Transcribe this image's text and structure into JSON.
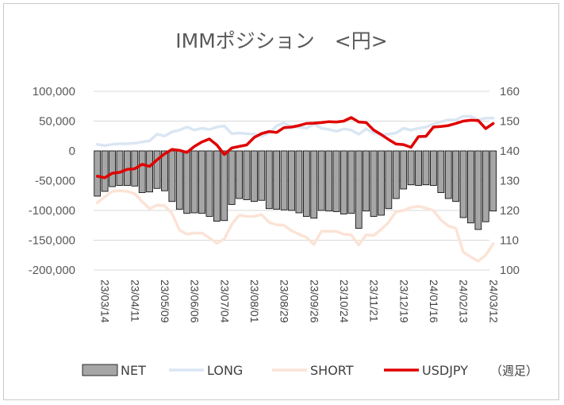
{
  "chart_data": {
    "type": "bar+line",
    "title": "IMMポジション　<円>",
    "note": "（週足）",
    "left_axis": {
      "ylim": [
        -200000,
        100000
      ],
      "ticks": [
        "100,000",
        "50,000",
        "0",
        "-50,000",
        "-100,000",
        "-150,000",
        "-200,000"
      ]
    },
    "right_axis": {
      "ylim": [
        100,
        160
      ],
      "ticks": [
        "160",
        "150",
        "140",
        "130",
        "120",
        "110",
        "100"
      ]
    },
    "x_tick_labels": [
      "23/03/14",
      "23/04/11",
      "23/05/09",
      "23/06/06",
      "23/07/04",
      "23/08/01",
      "23/08/29",
      "23/09/26",
      "23/10/24",
      "23/11/21",
      "23/12/19",
      "24/01/16",
      "24/02/13",
      "24/03/12"
    ],
    "x_tick_every": 4,
    "n_weeks": 53,
    "colors": {
      "net": "#a6a6a6",
      "long": "#dae6f3",
      "short": "#fbe3d6",
      "usdjpy": "#e00000"
    },
    "series": [
      {
        "name": "NET",
        "axis": "left",
        "kind": "bar",
        "values": [
          -76000,
          -68000,
          -60000,
          -58000,
          -58000,
          -59000,
          -70000,
          -69000,
          -63000,
          -67000,
          -85000,
          -98000,
          -105000,
          -104000,
          -105000,
          -110000,
          -118000,
          -117000,
          -90000,
          -80000,
          -82000,
          -85000,
          -83000,
          -97000,
          -98000,
          -99000,
          -100000,
          -104000,
          -110000,
          -113000,
          -100000,
          -101000,
          -102000,
          -106000,
          -105000,
          -130000,
          -101000,
          -110000,
          -108000,
          -97000,
          -80000,
          -64000,
          -57000,
          -58000,
          -57000,
          -58000,
          -70000,
          -80000,
          -85000,
          -112000,
          -121000,
          -132000,
          -119000,
          -101000
        ]
      },
      {
        "name": "LONG",
        "axis": "left",
        "kind": "line",
        "values": [
          11000,
          9000,
          11000,
          12000,
          12000,
          13000,
          15000,
          17000,
          28000,
          25000,
          32000,
          35000,
          40000,
          35000,
          38000,
          36000,
          40000,
          42000,
          29000,
          30000,
          29000,
          28000,
          25000,
          30000,
          42000,
          47000,
          40000,
          40000,
          38000,
          45000,
          38000,
          36000,
          33000,
          37000,
          35000,
          28000,
          37000,
          30000,
          27000,
          28000,
          30000,
          38000,
          35000,
          38000,
          40000,
          45000,
          49000,
          52000,
          52000,
          58000,
          58000,
          52000,
          55000,
          55000
        ]
      },
      {
        "name": "SHORT",
        "axis": "left",
        "kind": "line",
        "values": [
          -87000,
          -77000,
          -68000,
          -67000,
          -68000,
          -72000,
          -85000,
          -97000,
          -91000,
          -92000,
          -105000,
          -133000,
          -140000,
          -138000,
          -138000,
          -146000,
          -155000,
          -148000,
          -123000,
          -108000,
          -110000,
          -110000,
          -107000,
          -120000,
          -124000,
          -125000,
          -134000,
          -140000,
          -145000,
          -157000,
          -135000,
          -135000,
          -135000,
          -140000,
          -141000,
          -158000,
          -141000,
          -142000,
          -132000,
          -120000,
          -102000,
          -100000,
          -95000,
          -93000,
          -96000,
          -100000,
          -116000,
          -126000,
          -130000,
          -170000,
          -178000,
          -185000,
          -175000,
          -156000
        ]
      },
      {
        "name": "USDJPY",
        "axis": "right",
        "kind": "line",
        "values": [
          131.5,
          131.0,
          132.5,
          132.8,
          133.8,
          134.0,
          135.5,
          134.8,
          137.0,
          139.0,
          140.5,
          140.2,
          139.5,
          141.5,
          143.0,
          144.0,
          142.0,
          138.8,
          141.0,
          141.5,
          142.0,
          144.5,
          145.8,
          146.5,
          146.2,
          147.8,
          148.0,
          148.5,
          149.2,
          149.3,
          149.5,
          149.8,
          149.7,
          150.0,
          151.2,
          149.7,
          149.5,
          147.0,
          145.5,
          143.8,
          142.3,
          142.1,
          141.2,
          144.8,
          144.9,
          148.0,
          148.2,
          148.5,
          149.2,
          150.0,
          150.3,
          150.2,
          147.5,
          149.2
        ]
      }
    ]
  }
}
